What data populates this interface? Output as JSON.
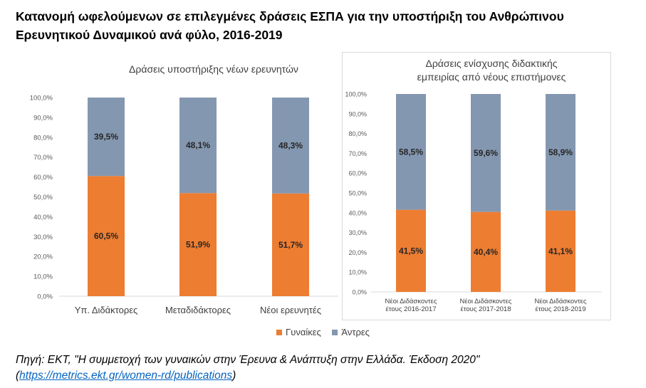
{
  "title": "Κατανομή ωφελούμενων σε επιλεγμένες δράσεις ΕΣΠΑ για την υποστήριξη  του Ανθρώπινου Ερευνητικού Δυναμικού ανά φύλο, 2016-2019",
  "colors": {
    "women": "#ed7d31",
    "men": "#8497b0"
  },
  "legend": {
    "women": "Γυναίκες",
    "men": "Άντρες"
  },
  "source": {
    "prefix": "Πηγή: ΕΚΤ, \"Η συμμετοχή των γυναικών στην Έρευνα & Ανάπτυξη στην Ελλάδα. Έκδοση 2020\"",
    "open": "(",
    "link": "https://metrics.ekt.gr/women-rd/publications",
    "close": ")"
  },
  "chart_data": [
    {
      "type": "bar",
      "stacked": true,
      "title": "Δράσεις υποστήριξης νέων ερευνητών",
      "categories": [
        "Υπ. Διδάκτορες",
        "Μεταδιδάκτορες",
        "Νέοι ερευνητές"
      ],
      "series": [
        {
          "name": "Γυναίκες",
          "values": [
            60.5,
            51.9,
            51.7
          ],
          "labels": [
            "60,5%",
            "51,9%",
            "51,7%"
          ]
        },
        {
          "name": "Άντρες",
          "values": [
            39.5,
            48.1,
            48.3
          ],
          "labels": [
            "39,5%",
            "48,1%",
            "48,3%"
          ]
        }
      ],
      "ylim": [
        0,
        100
      ],
      "yticks": [
        "0,0%",
        "10,0%",
        "20,0%",
        "30,0%",
        "40,0%",
        "50,0%",
        "60,0%",
        "70,0%",
        "80,0%",
        "90,0%",
        "100,0%"
      ],
      "grid": false,
      "legend": "bottom"
    },
    {
      "type": "bar",
      "stacked": true,
      "title": "Δράσεις ενίσχυσης διδακτικής εμπειρίας από νέους επιστήμονες",
      "title_lines": [
        "Δράσεις ενίσχυσης διδακτικής",
        "εμπειρίας από νέους επιστήμονες"
      ],
      "categories": [
        "Νέοι Διδάσκοντες έτους 2016-2017",
        "Νέοι Διδάσκοντες έτους 2017-2018",
        "Νέοι Διδάσκοντες έτους 2018-2019"
      ],
      "category_lines": [
        [
          "Νέοι Διδάσκοντες",
          "έτους 2016-2017"
        ],
        [
          "Νέοι Διδάσκοντες",
          "έτους 2017-2018"
        ],
        [
          "Νέοι Διδάσκοντες",
          "έτους 2018-2019"
        ]
      ],
      "series": [
        {
          "name": "Γυναίκες",
          "values": [
            41.5,
            40.4,
            41.1
          ],
          "labels": [
            "41,5%",
            "40,4%",
            "41,1%"
          ]
        },
        {
          "name": "Άντρες",
          "values": [
            58.5,
            59.6,
            58.9
          ],
          "labels": [
            "58,5%",
            "59,6%",
            "58,9%"
          ]
        }
      ],
      "ylim": [
        0,
        100
      ],
      "yticks": [
        "0,0%",
        "10,0%",
        "20,0%",
        "30,0%",
        "40,0%",
        "50,0%",
        "60,0%",
        "70,0%",
        "80,0%",
        "90,0%",
        "100,0%"
      ],
      "grid": false,
      "legend": "bottom"
    }
  ]
}
